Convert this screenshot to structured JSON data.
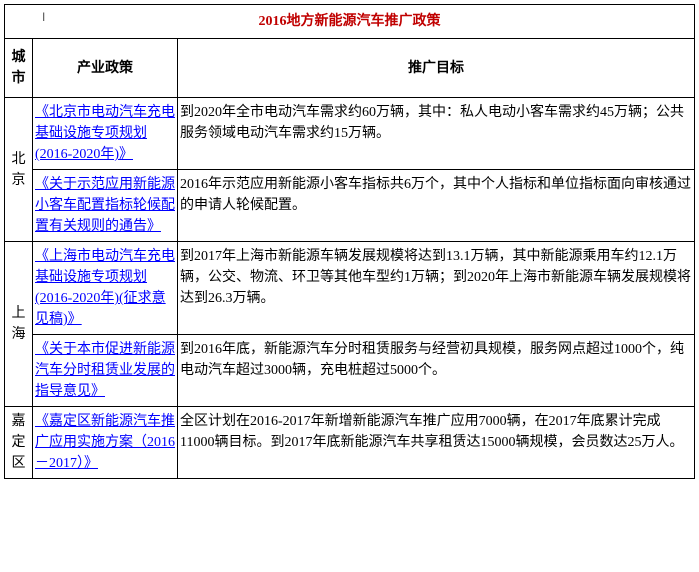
{
  "title": "2016地方新能源汽车推广政策",
  "headers": {
    "city": "城市",
    "policy": "产业政策",
    "target": "推广目标"
  },
  "rows": [
    {
      "city": "北京",
      "rowspan": 2,
      "items": [
        {
          "policy": "《北京市电动汽车充电基础设施专项规划(2016-2020年)》",
          "target": "到2020年全市电动汽车需求约60万辆，其中：私人电动小客车需求约45万辆；公共服务领域电动汽车需求约15万辆。"
        },
        {
          "policy": "《关于示范应用新能源小客车配置指标轮候配置有关规则的通告》",
          "target": "2016年示范应用新能源小客车指标共6万个，其中个人指标和单位指标面向审核通过的申请人轮候配置。"
        }
      ]
    },
    {
      "city": "上海",
      "rowspan": 2,
      "items": [
        {
          "policy": "《上海市电动汽车充电基础设施专项规划(2016-2020年)(征求意见稿)》",
          "target": "到2017年上海市新能源车辆发展规模将达到13.1万辆，其中新能源乘用车约12.1万辆，公交、物流、环卫等其他车型约1万辆；到2020年上海市新能源车辆发展规模将达到26.3万辆。"
        },
        {
          "policy": "《关于本市促进新能源汽车分时租赁业发展的指导意见》",
          "target": "到2016年底，新能源汽车分时租赁服务与经营初具规模，服务网点超过1000个，纯电动汽车超过3000辆，充电桩超过5000个。"
        }
      ]
    },
    {
      "city": "嘉定区",
      "rowspan": 1,
      "items": [
        {
          "policy": "《嘉定区新能源汽车推广应用实施方案（2016－2017）》",
          "target": "全区计划在2016-2017年新增新能源汽车推广应用7000辆，在2017年底累计完成11000辆目标。到2017年底新能源汽车共享租赁达15000辆规模，会员数达25万人。"
        }
      ]
    }
  ],
  "styling": {
    "title_color": "#c00000",
    "link_color": "#0000ff",
    "border_color": "#000000",
    "background_color": "#ffffff",
    "font_family": "SimSun",
    "base_font_size": 14,
    "col_widths": {
      "city": 28,
      "policy": 145
    }
  }
}
